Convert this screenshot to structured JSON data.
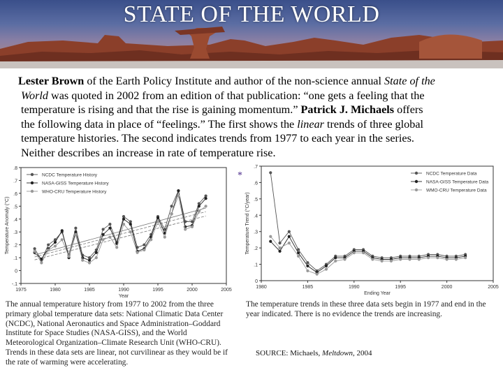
{
  "slide": {
    "title": "STATE OF THE WORLD",
    "paragraph": {
      "line1_name": "Lester Brown",
      "line1_rest": " of the Earth Policy Institute and author of the non-science annual ",
      "line1_italic": "State of the",
      "line2_italic": "World",
      "line2_rest": " was quoted in 2002 from an edition of that publication: “one gets a feeling that the",
      "line3": "temperature is rising and that the rise is gaining momentum.” ",
      "line3_name": "Patrick J. Michaels",
      "line3_rest": " offers",
      "line4_a": "the following data in place of  “feelings.”  The first shows the ",
      "line4_italic": "linear",
      "line4_b": " trends of three global",
      "line5": "temperature histories.  The second indicates trends from 1977 to each year in the series.",
      "line6": "Neither describes an increase in rate of temperature rise."
    },
    "star": "*",
    "caption1": "The annual temperature history from 1977 to 2002 from the three primary global temperature data sets: National Climatic Data Center (NCDC), National Aeronautics and Space Administration–Goddard Institute for Space Studies (NASA-GISS), and the World Meteorological Organization–Climate Research Unit (WHO-CRU). Trends in these data sets are linear, not curvilinear as they would be if the rate of warming were accelerating.",
    "caption2": "The temperature trends in these three data sets begin in 1977 and end in the year indicated. There is no evidence the trends are increasing.",
    "source_prefix": "SOURCE: Michaels, ",
    "source_italic": "Meltdown",
    "source_suffix": ", 2004"
  },
  "chart_data": [
    {
      "type": "line",
      "xlabel": "Year",
      "ylabel": "Temperature Anomaly (°C)",
      "xlim": [
        1975,
        2005
      ],
      "ylim": [
        -0.1,
        0.8
      ],
      "x_ticks": [
        "1975",
        "1980",
        "1985",
        "1990",
        "1995",
        "2000",
        "2005"
      ],
      "y_ticks": [
        ".8",
        ".7",
        ".6",
        ".5",
        ".4",
        ".3",
        ".2",
        ".1",
        "0",
        "-.1"
      ],
      "legend_position": "top-left",
      "x": [
        1977,
        1978,
        1979,
        1980,
        1981,
        1982,
        1983,
        1984,
        1985,
        1986,
        1987,
        1988,
        1989,
        1990,
        1991,
        1992,
        1993,
        1994,
        1995,
        1996,
        1997,
        1998,
        1999,
        2000,
        2001,
        2002
      ],
      "series": [
        {
          "name": "NCDC Temperature History",
          "color": "#555555",
          "values": [
            0.17,
            0.08,
            0.2,
            0.24,
            0.3,
            0.12,
            0.33,
            0.12,
            0.1,
            0.16,
            0.32,
            0.36,
            0.22,
            0.42,
            0.38,
            0.18,
            0.2,
            0.28,
            0.42,
            0.32,
            0.5,
            0.62,
            0.38,
            0.38,
            0.52,
            0.58
          ]
        },
        {
          "name": "NASA-GISS Temperature History",
          "color": "#222222",
          "values": [
            0.14,
            0.09,
            0.17,
            0.22,
            0.31,
            0.1,
            0.3,
            0.1,
            0.08,
            0.14,
            0.28,
            0.33,
            0.21,
            0.4,
            0.36,
            0.15,
            0.17,
            0.26,
            0.41,
            0.29,
            0.44,
            0.62,
            0.34,
            0.35,
            0.5,
            0.56
          ]
        },
        {
          "name": "WHO-CRU Temperature History",
          "color": "#999999",
          "values": [
            0.15,
            0.06,
            0.16,
            0.19,
            0.24,
            0.11,
            0.28,
            0.08,
            0.06,
            0.1,
            0.24,
            0.26,
            0.18,
            0.36,
            0.3,
            0.14,
            0.16,
            0.24,
            0.38,
            0.26,
            0.44,
            0.58,
            0.32,
            0.34,
            0.46,
            0.5
          ]
        }
      ]
    },
    {
      "type": "line",
      "xlabel": "Ending Year",
      "ylabel": "Temperature Trend (°C/year)",
      "xlim": [
        1980,
        2005
      ],
      "ylim": [
        0,
        0.7
      ],
      "x_ticks": [
        "1980",
        "1985",
        "1990",
        "1995",
        "2000",
        "2005"
      ],
      "y_ticks": [
        ".7",
        ".6",
        ".5",
        ".4",
        ".3",
        ".2",
        ".1",
        "0"
      ],
      "legend_position": "top-right",
      "x": [
        1981,
        1982,
        1983,
        1984,
        1985,
        1986,
        1987,
        1988,
        1989,
        1990,
        1991,
        1992,
        1993,
        1994,
        1995,
        1996,
        1997,
        1998,
        1999,
        2000,
        2001,
        2002
      ],
      "series": [
        {
          "name": "NCDC Temperature Data",
          "color": "#555555",
          "values": [
            0.66,
            0.23,
            0.3,
            0.19,
            0.11,
            0.06,
            0.1,
            0.15,
            0.15,
            0.19,
            0.19,
            0.15,
            0.14,
            0.14,
            0.15,
            0.15,
            0.15,
            0.16,
            0.16,
            0.15,
            0.15,
            0.16
          ]
        },
        {
          "name": "NASA-GISS Temperature Data",
          "color": "#222222",
          "values": [
            0.24,
            0.18,
            0.27,
            0.17,
            0.09,
            0.05,
            0.09,
            0.14,
            0.14,
            0.18,
            0.18,
            0.14,
            0.13,
            0.13,
            0.14,
            0.14,
            0.14,
            0.15,
            0.15,
            0.14,
            0.14,
            0.15
          ]
        },
        {
          "name": "WMO-CRU Temperature Data",
          "color": "#999999",
          "values": [
            0.27,
            0.2,
            0.23,
            0.15,
            0.06,
            0.04,
            0.07,
            0.12,
            0.13,
            0.17,
            0.17,
            0.13,
            0.12,
            0.12,
            0.13,
            0.13,
            0.13,
            0.14,
            0.14,
            0.13,
            0.13,
            0.14
          ]
        }
      ]
    }
  ]
}
